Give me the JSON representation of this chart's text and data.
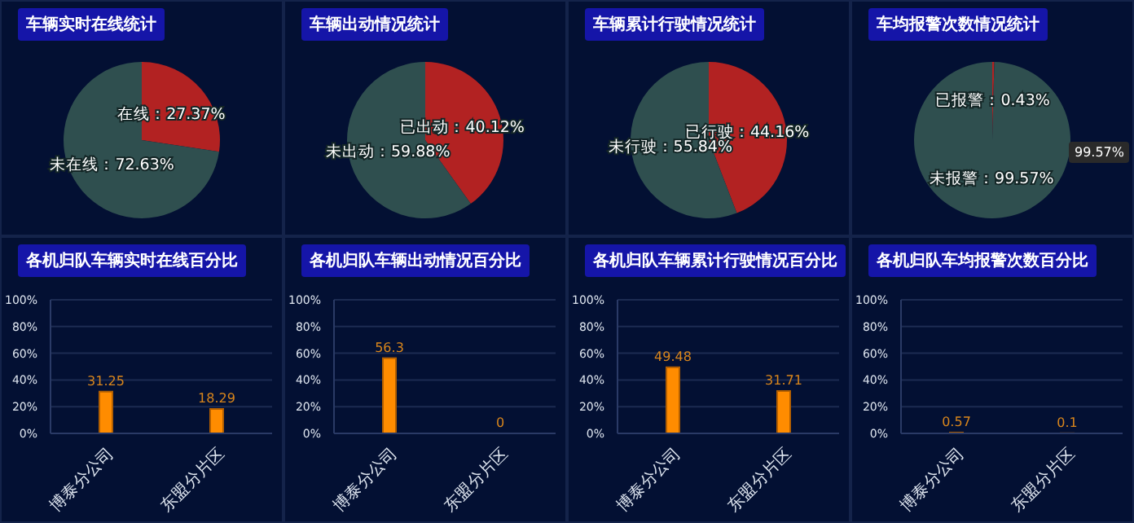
{
  "chart_data": [
    {
      "type": "pie",
      "title": "车辆实时在线统计",
      "categories": [
        "在线",
        "未在线"
      ],
      "values": [
        27.37,
        72.63
      ],
      "colors": [
        "#b22222",
        "#2f4f4f"
      ],
      "value_labels": [
        "27.37%",
        "72.63%"
      ]
    },
    {
      "type": "pie",
      "title": "车辆出动情况统计",
      "categories": [
        "已出动",
        "未出动"
      ],
      "values": [
        40.12,
        59.88
      ],
      "colors": [
        "#b22222",
        "#2f4f4f"
      ],
      "value_labels": [
        "40.12%",
        "59.88%"
      ]
    },
    {
      "type": "pie",
      "title": "车辆累计行驶情况统计",
      "categories": [
        "已行驶",
        "未行驶"
      ],
      "values": [
        44.16,
        55.84
      ],
      "colors": [
        "#b22222",
        "#2f4f4f"
      ],
      "value_labels": [
        "44.16%",
        "55.84%"
      ]
    },
    {
      "type": "pie",
      "title": "车均报警次数情况统计",
      "categories": [
        "已报警",
        "未报警"
      ],
      "values": [
        0.43,
        99.57
      ],
      "colors": [
        "#b22222",
        "#2f4f4f"
      ],
      "value_labels": [
        "0.43%",
        "99.57%"
      ],
      "annotations": [
        "99.57%"
      ]
    },
    {
      "type": "bar",
      "title": "各机归队车辆实时在线百分比",
      "categories": [
        "博泰分公司",
        "东盟分片区"
      ],
      "values": [
        31.25,
        18.29
      ],
      "color": "#ff8c00",
      "ylim": [
        0,
        100
      ],
      "yticks": [
        {
          "value": 0,
          "label": "0%"
        },
        {
          "value": 20,
          "label": "20%"
        },
        {
          "value": 40,
          "label": "40%"
        },
        {
          "value": 60,
          "label": "60%"
        },
        {
          "value": 80,
          "label": "80%"
        },
        {
          "value": 100,
          "label": "100%"
        }
      ],
      "grid": "y",
      "data_labels": true
    },
    {
      "type": "bar",
      "title": "各机归队车辆出动情况百分比",
      "categories": [
        "博泰分公司",
        "东盟分片区"
      ],
      "values": [
        56.3,
        0
      ],
      "color": "#ff8c00",
      "ylim": [
        0,
        100
      ],
      "yticks": [
        {
          "value": 0,
          "label": "0%"
        },
        {
          "value": 20,
          "label": "20%"
        },
        {
          "value": 40,
          "label": "40%"
        },
        {
          "value": 60,
          "label": "60%"
        },
        {
          "value": 80,
          "label": "80%"
        },
        {
          "value": 100,
          "label": "100%"
        }
      ],
      "grid": "y",
      "data_labels": true
    },
    {
      "type": "bar",
      "title": "各机归队车辆累计行驶情况百分比",
      "categories": [
        "博泰分公司",
        "东盟分片区"
      ],
      "values": [
        49.48,
        31.71
      ],
      "color": "#ff8c00",
      "ylim": [
        0,
        100
      ],
      "yticks": [
        {
          "value": 0,
          "label": "0%"
        },
        {
          "value": 20,
          "label": "20%"
        },
        {
          "value": 40,
          "label": "40%"
        },
        {
          "value": 60,
          "label": "60%"
        },
        {
          "value": 80,
          "label": "80%"
        },
        {
          "value": 100,
          "label": "100%"
        }
      ],
      "grid": "y",
      "data_labels": true
    },
    {
      "type": "bar",
      "title": "各机归队车均报警次数百分比",
      "categories": [
        "博泰分公司",
        "东盟分片区"
      ],
      "values": [
        0.57,
        0.1
      ],
      "color": "#ff8c00",
      "ylim": [
        0,
        100
      ],
      "yticks": [
        {
          "value": 0,
          "label": "0%"
        },
        {
          "value": 20,
          "label": "20%"
        },
        {
          "value": 40,
          "label": "40%"
        },
        {
          "value": 60,
          "label": "60%"
        },
        {
          "value": 80,
          "label": "80%"
        },
        {
          "value": 100,
          "label": "100%"
        }
      ],
      "grid": "y",
      "data_labels": true
    }
  ]
}
